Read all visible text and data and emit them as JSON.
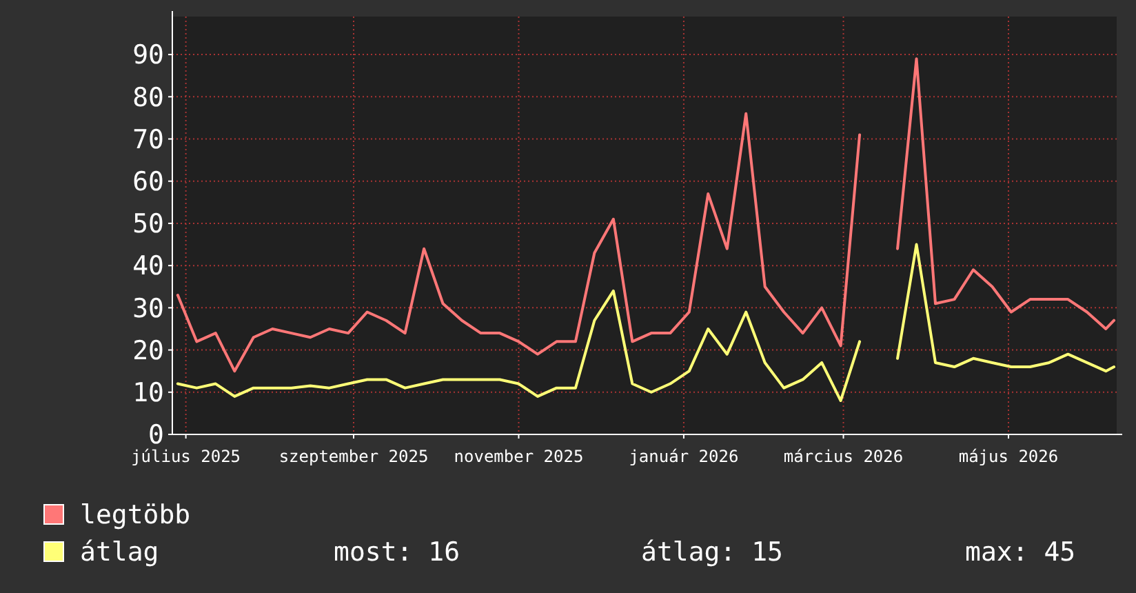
{
  "chart_data": {
    "type": "line",
    "x": [
      "2025-06-28",
      "2025-07-05",
      "2025-07-12",
      "2025-07-19",
      "2025-07-26",
      "2025-08-02",
      "2025-08-09",
      "2025-08-16",
      "2025-08-23",
      "2025-08-30",
      "2025-09-06",
      "2025-09-13",
      "2025-09-20",
      "2025-09-27",
      "2025-10-04",
      "2025-10-11",
      "2025-10-18",
      "2025-10-25",
      "2025-11-01",
      "2025-11-08",
      "2025-11-15",
      "2025-11-22",
      "2025-11-29",
      "2025-12-06",
      "2025-12-13",
      "2025-12-20",
      "2025-12-27",
      "2026-01-03",
      "2026-01-10",
      "2026-01-17",
      "2026-01-24",
      "2026-01-31",
      "2026-02-07",
      "2026-02-14",
      "2026-02-21",
      "2026-02-28",
      "2026-03-07",
      "2026-03-14",
      "2026-03-21",
      "2026-03-28",
      "2026-04-04",
      "2026-04-11",
      "2026-04-18",
      "2026-04-25",
      "2026-05-02",
      "2026-05-09",
      "2026-05-16",
      "2026-05-23",
      "2026-05-30",
      "2026-06-06",
      "2026-06-09"
    ],
    "series": [
      {
        "name": "legtöbb",
        "color": "#ff7777",
        "values": [
          33,
          22,
          24,
          15,
          23,
          25,
          24,
          23,
          25,
          24,
          29,
          27,
          24,
          44,
          31,
          27,
          24,
          24,
          22,
          19,
          22,
          22,
          43,
          51,
          22,
          24,
          24,
          29,
          57,
          44,
          76,
          35,
          29,
          24,
          30,
          21,
          71,
          null,
          44,
          89,
          31,
          32,
          39,
          35,
          29,
          32,
          32,
          32,
          29,
          25,
          27
        ]
      },
      {
        "name": "átlag",
        "color": "#ffff77",
        "values": [
          12,
          11,
          12,
          9,
          11,
          11,
          11,
          11.5,
          11,
          12,
          13,
          13,
          11,
          12,
          13,
          13,
          13,
          13,
          12,
          9,
          11,
          11,
          27,
          34,
          12,
          10,
          12,
          15,
          25,
          19,
          29,
          17,
          11,
          13,
          17,
          8,
          22,
          null,
          18,
          45,
          17,
          16,
          18,
          17,
          16,
          16,
          17,
          19,
          17,
          15,
          16
        ]
      }
    ],
    "xlim": [
      "2025-06-26",
      "2026-06-10"
    ],
    "xticks": [
      {
        "value": "2025-07-01",
        "label": "július 2025"
      },
      {
        "value": "2025-09-01",
        "label": "szeptember 2025"
      },
      {
        "value": "2025-11-01",
        "label": "november 2025"
      },
      {
        "value": "2026-01-01",
        "label": "január 2026"
      },
      {
        "value": "2026-03-01",
        "label": "március 2026"
      },
      {
        "value": "2026-05-01",
        "label": "május 2026"
      }
    ],
    "ylim": [
      0,
      99
    ],
    "yticks": [
      0,
      10,
      20,
      30,
      40,
      50,
      60,
      70,
      80,
      90
    ],
    "grid": true,
    "legend": "bottom",
    "line_style": "solid",
    "annotations": [
      "most: 16",
      "átlag: 15",
      "max: 45"
    ]
  }
}
